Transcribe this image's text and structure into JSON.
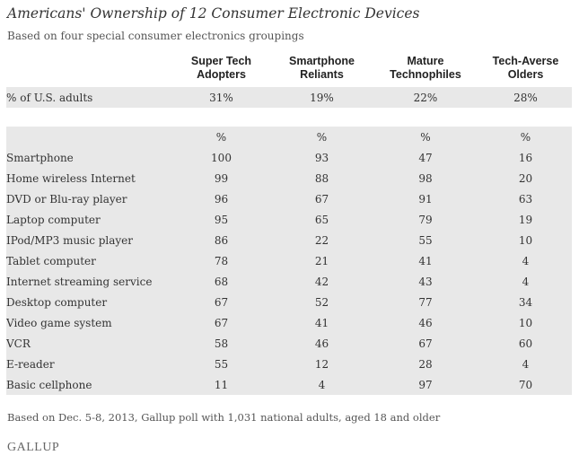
{
  "chart_data": {
    "type": "table",
    "title": "Americans' Ownership of 12 Consumer Electronic Devices",
    "subtitle": "Based on four special consumer electronics groupings",
    "columns": [
      {
        "line1": "Super Tech",
        "line2": "Adopters"
      },
      {
        "line1": "Smartphone",
        "line2": "Reliants"
      },
      {
        "line1": "Mature",
        "line2": "Technophiles"
      },
      {
        "line1": "Tech-Averse",
        "line2": "Olders"
      }
    ],
    "share_row": {
      "label": "% of U.S. adults",
      "values": [
        "31%",
        "19%",
        "22%",
        "28%"
      ]
    },
    "unit_row": {
      "label": "",
      "values": [
        "%",
        "%",
        "%",
        "%"
      ]
    },
    "rows": [
      {
        "label": "Smartphone",
        "values": [
          100,
          93,
          47,
          16
        ]
      },
      {
        "label": "Home wireless Internet",
        "values": [
          99,
          88,
          98,
          20
        ]
      },
      {
        "label": "DVD or Blu-ray player",
        "values": [
          96,
          67,
          91,
          63
        ]
      },
      {
        "label": "Laptop computer",
        "values": [
          95,
          65,
          79,
          19
        ]
      },
      {
        "label": "IPod/MP3 music player",
        "values": [
          86,
          22,
          55,
          10
        ]
      },
      {
        "label": "Tablet computer",
        "values": [
          78,
          21,
          41,
          4
        ]
      },
      {
        "label": "Internet streaming service",
        "values": [
          68,
          42,
          43,
          4
        ]
      },
      {
        "label": "Desktop computer",
        "values": [
          67,
          52,
          77,
          34
        ]
      },
      {
        "label": "Video game system",
        "values": [
          67,
          41,
          46,
          10
        ]
      },
      {
        "label": "VCR",
        "values": [
          58,
          46,
          67,
          60
        ]
      },
      {
        "label": "E-reader",
        "values": [
          55,
          12,
          28,
          4
        ]
      },
      {
        "label": "Basic cellphone",
        "values": [
          11,
          4,
          97,
          70
        ]
      }
    ],
    "footnote": "Based on Dec. 5-8, 2013, Gallup poll with 1,031 national adults, aged 18 and older"
  },
  "logo_text": "GALLUP",
  "colors": {
    "row_shade": "#e8e8e8",
    "text": "#333333"
  }
}
